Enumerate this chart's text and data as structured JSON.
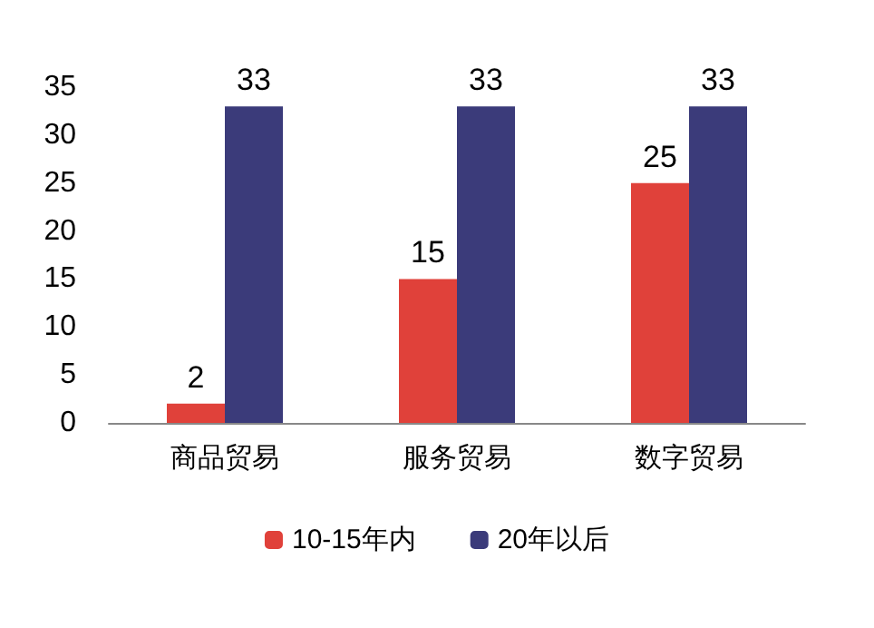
{
  "chart_data": {
    "type": "bar",
    "categories": [
      "商品贸易",
      "服务贸易",
      "数字贸易"
    ],
    "series": [
      {
        "name": "10-15年内",
        "color": "#e0413a",
        "values": [
          2,
          15,
          25
        ]
      },
      {
        "name": "20年以后",
        "color": "#3b3b7a",
        "values": [
          33,
          33,
          33
        ]
      }
    ],
    "ylim": [
      0,
      35
    ],
    "yticks": [
      0,
      5,
      10,
      15,
      20,
      25,
      30,
      35
    ],
    "grid": false,
    "legend": "bottom",
    "data_labels": true
  }
}
